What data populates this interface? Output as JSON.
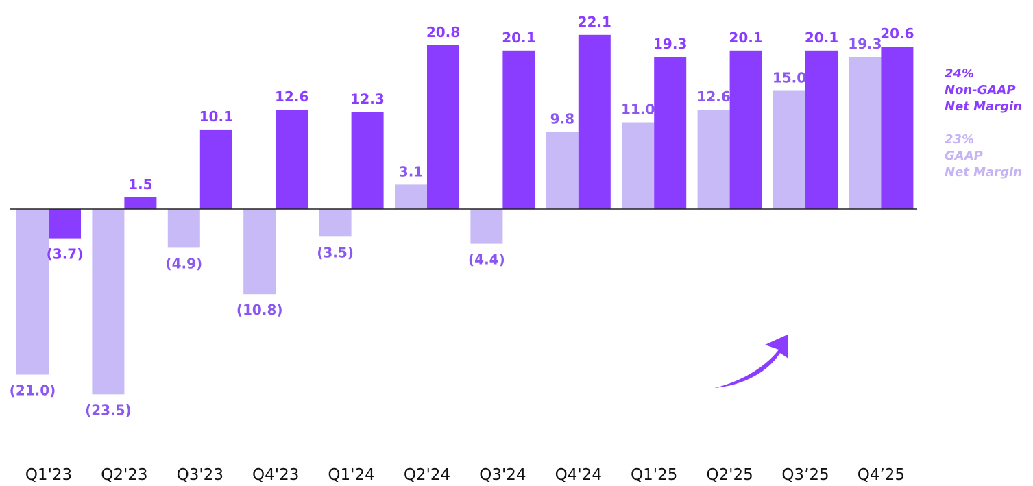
{
  "colors": {
    "gaap": "#c8b9f7",
    "gaap_label": "#8a58f0",
    "non_gaap": "#8a3cff",
    "non_gaap_label": "#8a3cff",
    "legend_gaap": "#c6b3f5",
    "legend_non_gaap": "#8a3cff",
    "baseline": "#222222"
  },
  "legend": {
    "non_gaap": {
      "percent": "24%",
      "line1": "Non-GAAP",
      "line2": "Net Margin"
    },
    "gaap": {
      "percent": "23%",
      "line1": "GAAP",
      "line2": "Net Margin"
    }
  },
  "chart_data": {
    "type": "bar",
    "categories": [
      "Q1'23",
      "Q2'23",
      "Q3'23",
      "Q4'23",
      "Q1'24",
      "Q2'24",
      "Q3'24",
      "Q4'24",
      "Q1'25",
      "Q2'25",
      "Q3’25",
      "Q4’25"
    ],
    "series": [
      {
        "values": [
          -21.0,
          -23.5,
          -4.9,
          -10.8,
          -3.5,
          3.1,
          -4.4,
          9.8,
          11.0,
          12.6,
          15.0,
          19.3
        ],
        "labels": [
          "(21.0)",
          "(23.5)",
          "(4.9)",
          "(10.8)",
          "(3.5)",
          "3.1",
          "(4.4)",
          "9.8",
          "11.0",
          "12.6",
          "15.0",
          "19.3"
        ]
      },
      {
        "values": [
          -3.7,
          1.5,
          10.1,
          12.6,
          12.3,
          20.8,
          20.1,
          22.1,
          19.3,
          20.1,
          20.1,
          20.6
        ],
        "labels": [
          "(3.7)",
          "1.5",
          "10.1",
          "12.6",
          "12.3",
          "20.8",
          "20.1",
          "22.1",
          "19.3",
          "20.1",
          "20.1",
          "20.6"
        ]
      }
    ],
    "legend_position": "right",
    "grid": false
  }
}
